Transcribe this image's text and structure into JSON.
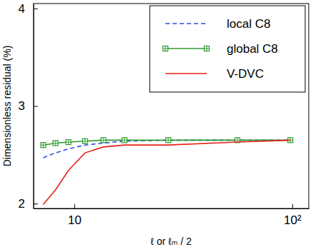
{
  "chart_data": {
    "type": "line",
    "x_label": "ℓ or ℓₘ / 2",
    "y_label": "Dimensionless residual (%)",
    "log": "x",
    "legend": "upper right",
    "xlim": [
      6.5,
      119
    ],
    "xticks": [
      10,
      {
        "value": 100,
        "label": "10²"
      }
    ],
    "ylim": [
      1.95,
      4.05
    ],
    "yticks": [
      2,
      3,
      4
    ],
    "x": [
      7.2,
      8.2,
      9.4,
      11.2,
      13.6,
      17,
      27,
      56,
      98
    ],
    "series": [
      {
        "name": "local C8",
        "color": "#2f4fe0",
        "line_style": "dashed",
        "values": [
          2.47,
          2.52,
          2.56,
          2.6,
          2.62,
          2.64,
          2.65,
          2.65,
          2.65
        ]
      },
      {
        "name": "global C8",
        "color": "#2e9a2e",
        "line_style": "solid",
        "marker": "square",
        "values": [
          2.6,
          2.62,
          2.63,
          2.64,
          2.65,
          2.65,
          2.65,
          2.65,
          2.65
        ]
      },
      {
        "name": "V-DVC",
        "color": "#e8201a",
        "line_style": "solid",
        "values": [
          1.99,
          2.14,
          2.34,
          2.52,
          2.58,
          2.6,
          2.6,
          2.63,
          2.65
        ]
      }
    ]
  }
}
